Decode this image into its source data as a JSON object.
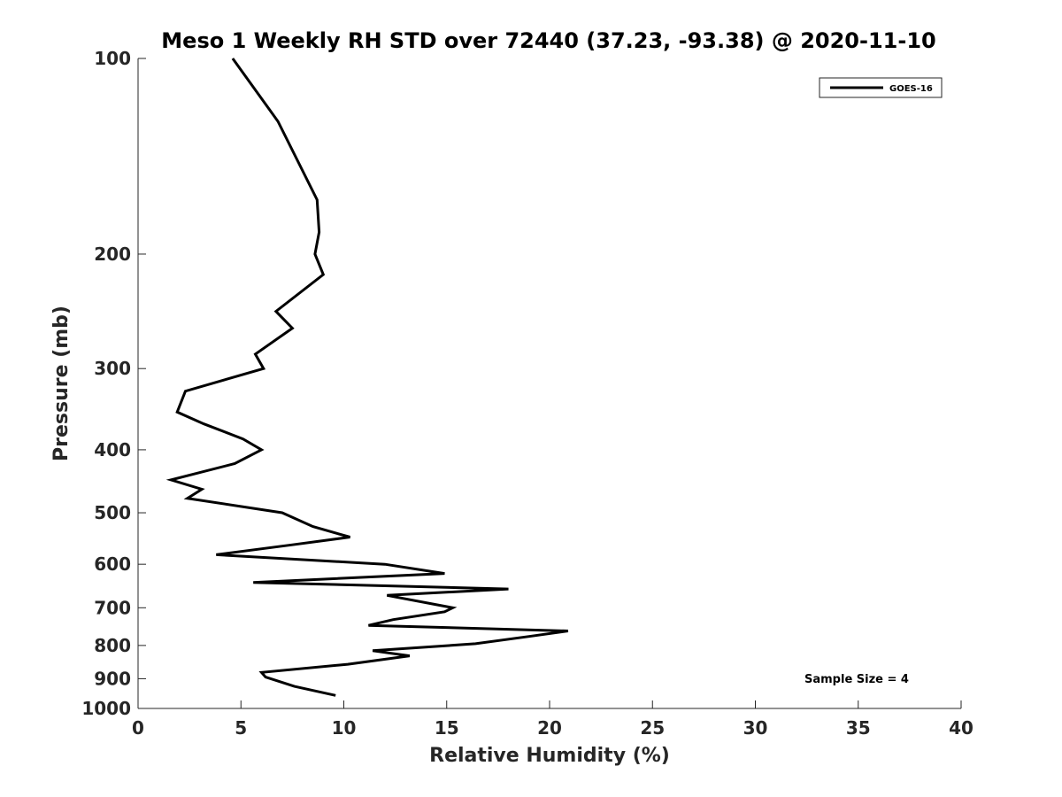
{
  "chart_data": {
    "type": "line",
    "title": "Meso 1 Weekly RH STD over 72440 (37.23, -93.38) @ 2020-11-10",
    "xlabel": "Relative Humidity (%)",
    "ylabel": "Pressure (mb)",
    "xlim": [
      0,
      40
    ],
    "ylim": [
      100,
      1000
    ],
    "yscale": "log",
    "y_reversed": true,
    "xticks": [
      0,
      5,
      10,
      15,
      20,
      25,
      30,
      35,
      40
    ],
    "yticks": [
      100,
      200,
      300,
      400,
      500,
      600,
      700,
      800,
      900,
      1000
    ],
    "grid": false,
    "legend_position": "top-right",
    "annotation": "Sample Size = 4",
    "series": [
      {
        "name": "GOES-16",
        "color": "#000000",
        "points": [
          [
            4.6,
            100
          ],
          [
            6.8,
            125
          ],
          [
            8.7,
            165
          ],
          [
            8.8,
            185
          ],
          [
            8.6,
            200
          ],
          [
            9.0,
            215
          ],
          [
            6.7,
            245
          ],
          [
            7.5,
            260
          ],
          [
            5.7,
            285
          ],
          [
            6.1,
            300
          ],
          [
            2.3,
            325
          ],
          [
            1.9,
            350
          ],
          [
            3.2,
            365
          ],
          [
            5.1,
            385
          ],
          [
            6.0,
            400
          ],
          [
            4.7,
            420
          ],
          [
            1.6,
            445
          ],
          [
            3.1,
            460
          ],
          [
            2.4,
            475
          ],
          [
            7.0,
            500
          ],
          [
            8.5,
            525
          ],
          [
            10.3,
            545
          ],
          [
            7.5,
            560
          ],
          [
            3.8,
            580
          ],
          [
            12.0,
            600
          ],
          [
            14.9,
            620
          ],
          [
            5.6,
            640
          ],
          [
            18.0,
            655
          ],
          [
            12.1,
            670
          ],
          [
            15.3,
            700
          ],
          [
            14.9,
            710
          ],
          [
            12.4,
            730
          ],
          [
            11.2,
            745
          ],
          [
            20.9,
            760
          ],
          [
            19.0,
            775
          ],
          [
            16.4,
            795
          ],
          [
            11.4,
            815
          ],
          [
            13.2,
            830
          ],
          [
            10.2,
            855
          ],
          [
            6.0,
            880
          ],
          [
            6.2,
            895
          ],
          [
            7.6,
            925
          ],
          [
            9.6,
            955
          ]
        ]
      }
    ]
  }
}
